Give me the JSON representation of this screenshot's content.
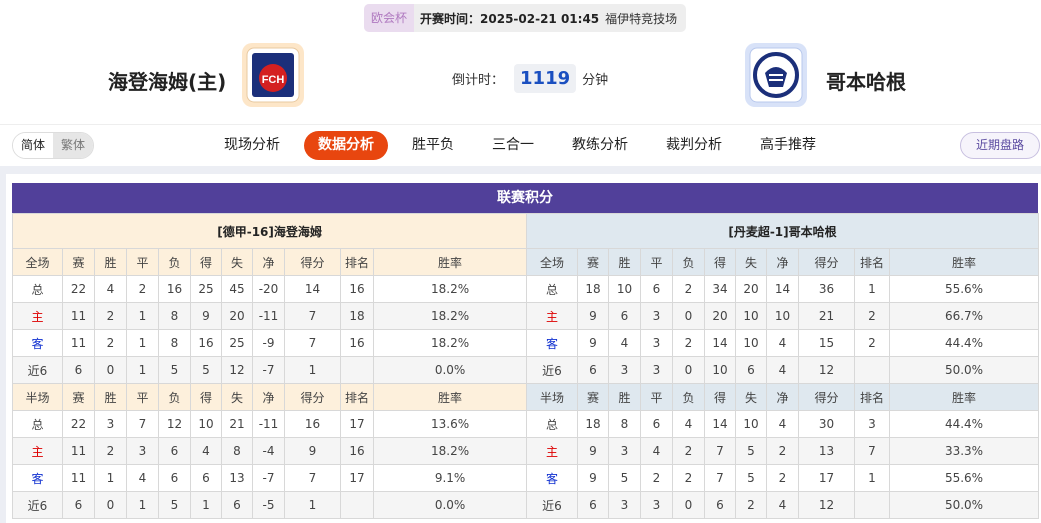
{
  "header": {
    "competition": "欧会杯",
    "match_time": "开赛时间：2025-02-21 01:45",
    "venue": "福伊特竞技场",
    "home_team": "海登海姆(主)",
    "away_team": "哥本哈根",
    "home_logo_text": "FCH",
    "countdown_label": "倒计时：",
    "countdown_value": "1119",
    "countdown_unit": "分钟"
  },
  "nav": {
    "lang": [
      "简体",
      "繁体"
    ],
    "tabs": [
      "现场分析",
      "数据分析",
      "胜平负",
      "三合一",
      "教练分析",
      "裁判分析",
      "高手推荐"
    ],
    "active_tab": "数据分析",
    "recent_button": "近期盘路"
  },
  "colors": {
    "accent": "#e8460f",
    "section": "#51409a",
    "home": "#dd0000",
    "away": "#1030d0"
  },
  "standings": {
    "title": "联赛积分",
    "columns_full": [
      "全场",
      "赛",
      "胜",
      "平",
      "负",
      "得",
      "失",
      "净",
      "得分",
      "排名",
      "胜率"
    ],
    "columns_half": [
      "半场",
      "赛",
      "胜",
      "平",
      "负",
      "得",
      "失",
      "净",
      "得分",
      "排名",
      "胜率"
    ],
    "home": {
      "title": "[德甲-16]海登海姆",
      "full": [
        [
          "总",
          "22",
          "4",
          "2",
          "16",
          "25",
          "45",
          "-20",
          "14",
          "16",
          "18.2%"
        ],
        [
          "主",
          "11",
          "2",
          "1",
          "8",
          "9",
          "20",
          "-11",
          "7",
          "18",
          "18.2%"
        ],
        [
          "客",
          "11",
          "2",
          "1",
          "8",
          "16",
          "25",
          "-9",
          "7",
          "16",
          "18.2%"
        ],
        [
          "近6",
          "6",
          "0",
          "1",
          "5",
          "5",
          "12",
          "-7",
          "1",
          "",
          "0.0%"
        ]
      ],
      "half": [
        [
          "总",
          "22",
          "3",
          "7",
          "12",
          "10",
          "21",
          "-11",
          "16",
          "17",
          "13.6%"
        ],
        [
          "主",
          "11",
          "2",
          "3",
          "6",
          "4",
          "8",
          "-4",
          "9",
          "16",
          "18.2%"
        ],
        [
          "客",
          "11",
          "1",
          "4",
          "6",
          "6",
          "13",
          "-7",
          "7",
          "17",
          "9.1%"
        ],
        [
          "近6",
          "6",
          "0",
          "1",
          "5",
          "1",
          "6",
          "-5",
          "1",
          "",
          "0.0%"
        ]
      ]
    },
    "away": {
      "title": "[丹麦超-1]哥本哈根",
      "full": [
        [
          "总",
          "18",
          "10",
          "6",
          "2",
          "34",
          "20",
          "14",
          "36",
          "1",
          "55.6%"
        ],
        [
          "主",
          "9",
          "6",
          "3",
          "0",
          "20",
          "10",
          "10",
          "21",
          "2",
          "66.7%"
        ],
        [
          "客",
          "9",
          "4",
          "3",
          "2",
          "14",
          "10",
          "4",
          "15",
          "2",
          "44.4%"
        ],
        [
          "近6",
          "6",
          "3",
          "3",
          "0",
          "10",
          "6",
          "4",
          "12",
          "",
          "50.0%"
        ]
      ],
      "half": [
        [
          "总",
          "18",
          "8",
          "6",
          "4",
          "14",
          "10",
          "4",
          "30",
          "3",
          "44.4%"
        ],
        [
          "主",
          "9",
          "3",
          "4",
          "2",
          "7",
          "5",
          "2",
          "13",
          "7",
          "33.3%"
        ],
        [
          "客",
          "9",
          "5",
          "2",
          "2",
          "7",
          "5",
          "2",
          "17",
          "1",
          "55.6%"
        ],
        [
          "近6",
          "6",
          "3",
          "3",
          "0",
          "6",
          "2",
          "4",
          "12",
          "",
          "50.0%"
        ]
      ]
    }
  }
}
